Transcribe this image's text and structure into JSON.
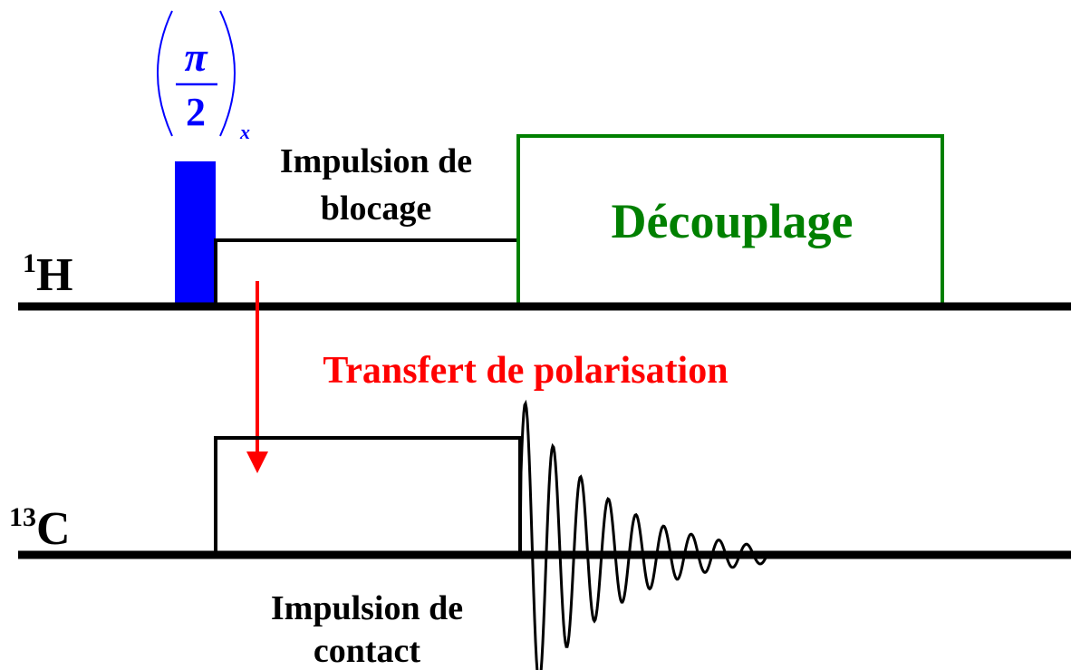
{
  "pulse_label": {
    "numerator": "π",
    "denominator": "2",
    "subscript": "x"
  },
  "channels": [
    {
      "mass": "1",
      "element": "H"
    },
    {
      "mass": "13",
      "element": "C"
    }
  ],
  "labels": {
    "spin_lock": [
      "Impulsion de",
      "blocage"
    ],
    "decoupling": "Découplage",
    "transfer": "Transfert de polarisation",
    "contact": [
      "Impulsion de",
      "contact"
    ]
  }
}
